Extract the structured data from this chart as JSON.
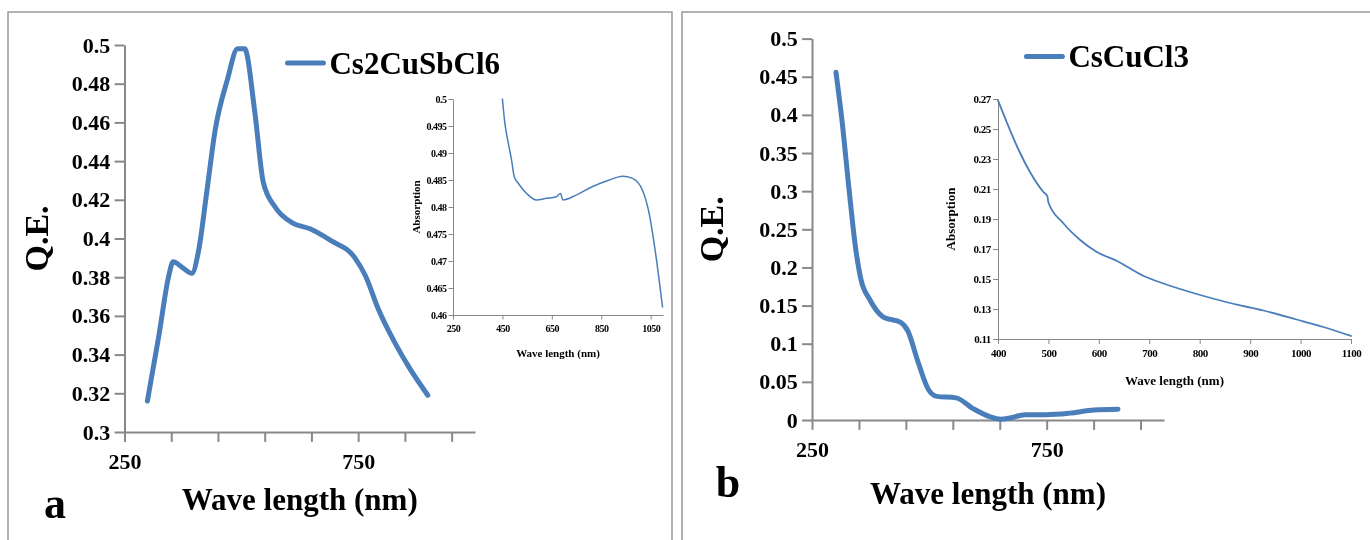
{
  "chart_data": [
    {
      "type": "line",
      "xlabel": "Wave length (nm)",
      "ylabel": "Q.E.",
      "legend": "top right",
      "annotations": [
        "a"
      ],
      "xlim": [
        250,
        1000
      ],
      "ylim": [
        0.3,
        0.5
      ],
      "xticks": [
        250,
        {
          "value": 350,
          "label": null
        },
        {
          "value": 450,
          "label": null
        },
        {
          "value": 550,
          "label": null
        },
        {
          "value": 650,
          "label": null
        },
        750,
        {
          "value": 850,
          "label": null
        },
        {
          "value": 950,
          "label": null
        }
      ],
      "yticks": [
        0.3,
        0.32,
        0.34,
        0.36,
        0.38,
        0.4,
        0.42,
        0.44,
        0.46,
        0.48,
        0.5
      ],
      "series": [
        {
          "name": "Cs2CuSbCl6",
          "color": "#4a7ebb",
          "x": [
            299,
            323,
            345,
            354,
            374,
            394,
            408,
            426,
            444,
            470,
            492,
            507,
            529,
            547,
            573,
            610,
            647,
            691,
            743,
            765,
            794,
            831,
            860,
            899
          ],
          "values": [
            0.316,
            0.349,
            0.381,
            0.388,
            0.385,
            0.382,
            0.393,
            0.424,
            0.456,
            0.482,
            0.498,
            0.498,
            0.465,
            0.429,
            0.416,
            0.408,
            0.405,
            0.399,
            0.39,
            0.381,
            0.363,
            0.345,
            0.333,
            0.319
          ]
        }
      ]
    },
    {
      "type": "line",
      "xlabel": "Wave length (nm)",
      "ylabel": "Absorption",
      "xlim": [
        250,
        1100
      ],
      "ylim": [
        0.46,
        0.5
      ],
      "xticks": [
        250,
        450,
        650,
        850,
        1050
      ],
      "yticks": [
        0.46,
        0.465,
        0.47,
        0.475,
        0.48,
        0.485,
        0.49,
        0.495,
        0.5
      ],
      "series": [
        {
          "color": "#4a7ebb",
          "x": [
            450,
            460,
            474,
            487,
            498,
            514,
            548,
            588,
            628,
            668,
            685,
            695,
            748,
            815,
            883,
            936,
            977,
            1017,
            1044,
            1070,
            1098
          ],
          "values": [
            0.5,
            0.4955,
            0.4918,
            0.4887,
            0.4856,
            0.4844,
            0.4825,
            0.4813,
            0.4816,
            0.4819,
            0.4825,
            0.4813,
            0.4822,
            0.4838,
            0.485,
            0.4857,
            0.4853,
            0.4831,
            0.4788,
            0.4714,
            0.4615
          ]
        }
      ]
    },
    {
      "type": "line",
      "xlabel": "Wave length (nm)",
      "ylabel": "Q.E.",
      "legend": "top right",
      "annotations": [
        "b"
      ],
      "xlim": [
        250,
        1000
      ],
      "ylim": [
        0,
        0.5
      ],
      "xticks": [
        250,
        {
          "value": 350,
          "label": null
        },
        {
          "value": 450,
          "label": null
        },
        {
          "value": 550,
          "label": null
        },
        {
          "value": 650,
          "label": null
        },
        750,
        {
          "value": 850,
          "label": null
        },
        {
          "value": 950,
          "label": null
        }
      ],
      "yticks": [
        0,
        0.05,
        0.1,
        0.15,
        0.2,
        0.25,
        0.3,
        0.35,
        0.4,
        0.45,
        0.5
      ],
      "series": [
        {
          "name": "CsCuCl3",
          "color": "#4a7ebb",
          "x": [
            301,
            314,
            329,
            343,
            354,
            373,
            402,
            439,
            454,
            476,
            498,
            516,
            557,
            593,
            630,
            652,
            674,
            704,
            748,
            799,
            851,
            902
          ],
          "values": [
            0.456,
            0.392,
            0.302,
            0.225,
            0.185,
            0.158,
            0.135,
            0.128,
            0.117,
            0.076,
            0.04,
            0.031,
            0.029,
            0.015,
            0.004,
            0.001,
            0.003,
            0.007,
            0.007,
            0.009,
            0.013,
            0.014
          ]
        }
      ]
    },
    {
      "type": "line",
      "xlabel": "Wave length  (nm)",
      "ylabel": "Absorption",
      "xlim": [
        400,
        1100
      ],
      "ylim": [
        0.11,
        0.27
      ],
      "xticks": [
        400,
        500,
        600,
        700,
        800,
        900,
        1000,
        1100
      ],
      "yticks": [
        0.11,
        0.13,
        0.15,
        0.17,
        0.19,
        0.21,
        0.23,
        0.25,
        0.27
      ],
      "series": [
        {
          "color": "#4a7ebb",
          "x": [
            400,
            418,
            441,
            464,
            490,
            498,
            500,
            530,
            563,
            596,
            636,
            689,
            728,
            794,
            860,
            926,
            992,
            1045,
            1100
          ],
          "values": [
            0.269,
            0.254,
            0.236,
            0.221,
            0.208,
            0.205,
            0.201,
            0.187,
            0.176,
            0.168,
            0.162,
            0.152,
            0.147,
            0.14,
            0.134,
            0.129,
            0.123,
            0.118,
            0.112
          ]
        }
      ]
    }
  ]
}
